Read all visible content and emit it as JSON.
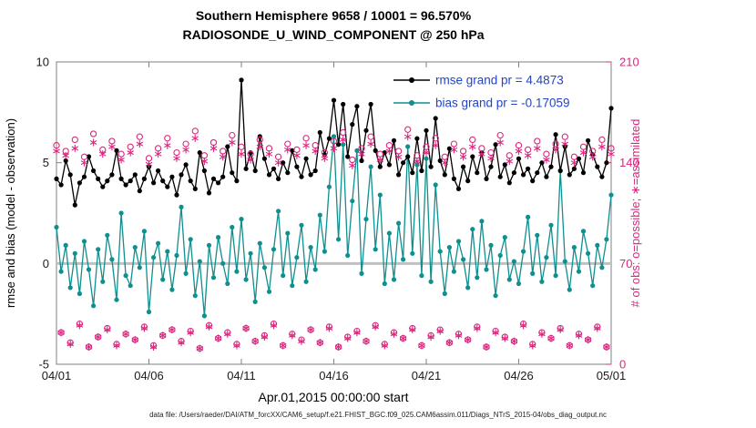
{
  "title": {
    "line1": "Southern Hemisphere 9658 / 10001 = 96.570%",
    "line2": "RADIOSONDE_U_WIND_COMPONENT @ 250 hPa"
  },
  "xlabel": "Apr.01,2015 00:00:00 start",
  "ylabel_left": "rmse and bias (model - observation)",
  "ylabel_right": "# of obs: o=possible; ∗=assimilated",
  "footer": "data file: /Users/raeder/DAI/ATM_forcXX/CAM6_setup/f.e21.FHIST_BGC.f09_025.CAM6assim.011/Diags_NTrS_2015-04/obs_diag_output.nc",
  "legend": {
    "rmse_label": "rmse grand pr = 4.4873",
    "bias_label": "bias grand pr = -0.17059"
  },
  "colors": {
    "rmse": "#000000",
    "bias": "#0f8f8f",
    "obs_count": "#dc267f",
    "legend_text": "#2244cc",
    "zero_line": "#c0c0c0",
    "axis_box": "#808080"
  },
  "chart_data": {
    "type": "line",
    "title": "Southern Hemisphere 9658 / 10001 = 96.570% | RADIOSONDE_U_WIND_COMPONENT @ 250 hPa",
    "x_start_days": 0,
    "x_step_days": 0.25,
    "x_range": [
      0,
      30
    ],
    "x_ticks": [
      0,
      5,
      10,
      15,
      20,
      25,
      30
    ],
    "x_tick_labels": [
      "04/01",
      "04/06",
      "04/11",
      "04/16",
      "04/21",
      "04/26",
      "05/01"
    ],
    "ylim_left": [
      -5,
      10
    ],
    "yticks_left": [
      -5,
      0,
      5,
      10
    ],
    "ytick_labels_left": [
      "-5",
      "0",
      "5",
      "10"
    ],
    "ylim_right": [
      0,
      210
    ],
    "yticks_right": [
      0,
      70,
      140,
      210
    ],
    "ytick_labels_right": [
      "0",
      "70",
      "140",
      "210"
    ],
    "grid": false,
    "legend_position": "top-right-inside",
    "series": [
      {
        "name": "rmse",
        "axis": "left",
        "marker": "filled-circle",
        "grand_value": 4.4873,
        "values": [
          4.2,
          3.9,
          5.1,
          4.4,
          2.9,
          4.0,
          4.3,
          5.3,
          4.6,
          4.2,
          3.8,
          4.1,
          4.4,
          5.6,
          4.2,
          3.9,
          4.1,
          4.4,
          3.6,
          4.2,
          4.8,
          4.0,
          4.6,
          4.1,
          3.8,
          4.3,
          3.4,
          4.4,
          4.9,
          4.1,
          3.7,
          5.5,
          4.6,
          3.5,
          4.2,
          4.0,
          4.3,
          5.8,
          4.5,
          4.1,
          9.1,
          4.7,
          5.5,
          4.6,
          6.3,
          5.2,
          4.4,
          4.7,
          4.2,
          5.0,
          4.5,
          5.6,
          4.8,
          4.3,
          5.2,
          4.4,
          4.6,
          6.5,
          5.4,
          6.2,
          8.1,
          5.9,
          7.9,
          5.3,
          6.9,
          7.8,
          5.1,
          6.6,
          7.9,
          5.6,
          4.8,
          5.5,
          4.9,
          6.1,
          4.4,
          5.0,
          5.3,
          4.5,
          6.2,
          4.6,
          6.6,
          4.8,
          7.2,
          5.1,
          4.4,
          5.7,
          4.2,
          3.7,
          4.8,
          4.1,
          5.3,
          4.5,
          5.5,
          4.2,
          4.8,
          5.9,
          4.3,
          4.9,
          4.0,
          4.5,
          5.2,
          4.4,
          4.7,
          4.1,
          4.5,
          5.0,
          4.3,
          4.8,
          6.4,
          4.6,
          5.8,
          4.4,
          4.7,
          5.2,
          4.5,
          6.1,
          5.4,
          4.8,
          4.3,
          5.0,
          7.7
        ]
      },
      {
        "name": "bias",
        "axis": "left",
        "marker": "filled-circle",
        "grand_value": -0.17059,
        "values": [
          1.8,
          -0.4,
          0.9,
          -1.2,
          0.5,
          -1.5,
          1.1,
          -0.3,
          -2.1,
          0.7,
          -0.9,
          1.4,
          0.2,
          -1.8,
          2.5,
          -0.6,
          -1.1,
          0.8,
          -0.2,
          1.6,
          -2.4,
          0.3,
          1.0,
          -0.8,
          0.6,
          -1.3,
          0.4,
          2.8,
          -0.5,
          1.2,
          -1.6,
          0.1,
          -2.6,
          0.9,
          -0.7,
          1.3,
          0.0,
          -1.0,
          1.8,
          -0.4,
          2.2,
          -0.8,
          0.5,
          -1.9,
          1.0,
          -0.2,
          -1.4,
          0.7,
          2.6,
          -0.6,
          1.5,
          -1.1,
          0.3,
          1.9,
          -0.9,
          0.8,
          -0.3,
          2.4,
          0.6,
          3.8,
          6.3,
          1.2,
          5.9,
          0.4,
          3.1,
          5.6,
          -0.5,
          2.2,
          4.8,
          0.7,
          3.4,
          -1.0,
          1.5,
          -0.8,
          2.0,
          0.2,
          5.8,
          0.5,
          4.9,
          -0.6,
          5.2,
          -0.9,
          3.9,
          0.6,
          -1.5,
          0.8,
          -0.4,
          1.1,
          0.2,
          -1.2,
          1.7,
          -0.7,
          2.1,
          -0.3,
          0.9,
          -1.6,
          0.4,
          1.3,
          -0.8,
          0.1,
          -1.0,
          0.6,
          2.3,
          -0.5,
          1.4,
          -0.9,
          0.3,
          1.9,
          -0.6,
          4.6,
          0.1,
          -1.3,
          0.8,
          -0.4,
          1.6,
          0.5,
          -1.1,
          0.9,
          -0.2,
          1.2,
          3.4
        ]
      },
      {
        "name": "n_possible",
        "axis": "right",
        "marker": "open-circle",
        "total": 10001,
        "values": [
          152,
          22,
          148,
          15,
          156,
          28,
          144,
          12,
          160,
          19,
          149,
          25,
          155,
          14,
          146,
          21,
          151,
          17,
          158,
          26,
          143,
          13,
          150,
          20,
          157,
          24,
          147,
          16,
          153,
          23,
          162,
          11,
          145,
          27,
          154,
          18,
          148,
          22,
          159,
          14,
          151,
          25,
          146,
          16,
          156,
          20,
          150,
          28,
          144,
          13,
          153,
          21,
          149,
          17,
          157,
          24,
          152,
          15,
          147,
          26,
          155,
          12,
          161,
          19,
          142,
          23,
          150,
          16,
          158,
          27,
          146,
          14,
          152,
          22,
          148,
          18,
          163,
          25,
          145,
          13,
          151,
          20,
          157,
          24,
          144,
          15,
          153,
          21,
          148,
          17,
          156,
          26,
          150,
          12,
          147,
          23,
          159,
          19,
          145,
          16,
          152,
          28,
          149,
          14,
          155,
          22,
          146,
          18,
          153,
          25,
          158,
          13,
          144,
          21,
          151,
          17,
          148,
          26,
          156,
          12,
          150
        ]
      },
      {
        "name": "n_assimilated",
        "axis": "right",
        "marker": "asterisk",
        "total": 9658,
        "values": [
          148,
          22,
          145,
          14,
          150,
          27,
          140,
          12,
          154,
          19,
          146,
          24,
          151,
          13,
          142,
          21,
          147,
          17,
          153,
          25,
          139,
          12,
          146,
          20,
          152,
          24,
          143,
          15,
          149,
          22,
          157,
          11,
          141,
          26,
          150,
          18,
          144,
          21,
          154,
          13,
          146,
          25,
          142,
          16,
          151,
          19,
          146,
          27,
          140,
          13,
          149,
          20,
          145,
          16,
          152,
          24,
          148,
          15,
          143,
          25,
          150,
          12,
          156,
          18,
          138,
          22,
          146,
          16,
          153,
          26,
          142,
          13,
          148,
          21,
          144,
          18,
          158,
          24,
          141,
          13,
          147,
          19,
          152,
          23,
          140,
          15,
          149,
          20,
          144,
          17,
          151,
          25,
          146,
          12,
          143,
          22,
          154,
          18,
          141,
          16,
          148,
          27,
          145,
          13,
          150,
          21,
          142,
          18,
          149,
          24,
          153,
          13,
          140,
          20,
          147,
          17,
          144,
          25,
          151,
          12,
          146
        ]
      }
    ]
  }
}
